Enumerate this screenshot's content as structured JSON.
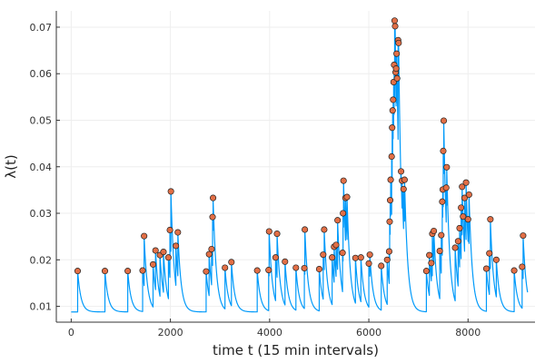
{
  "chart_data": {
    "type": "line",
    "title": "",
    "xlabel": "time t (15 min intervals)",
    "ylabel": "λ(t)",
    "xlim": [
      -300,
      9350
    ],
    "ylim": [
      0.0066,
      0.0735
    ],
    "xticks": [
      0,
      2000,
      4000,
      6000,
      8000
    ],
    "yticks": [
      0.01,
      0.02,
      0.03,
      0.04,
      0.05,
      0.06,
      0.07
    ],
    "ytick_labels": [
      "0.01",
      "0.02",
      "0.03",
      "0.04",
      "0.05",
      "0.06",
      "0.07"
    ],
    "grid": true,
    "legend": "none",
    "baseline": 0.0088,
    "decay": 0.985,
    "t_end": 9200,
    "colors": {
      "line": "#009AFA",
      "marker": "#E26F46",
      "marker_edge": "#222222",
      "grid": "#eeeeee",
      "axis": "#333333"
    },
    "series": [
      {
        "values": [
          [
            130,
            0.0176
          ],
          [
            680,
            0.0176
          ],
          [
            1140,
            0.0176
          ],
          [
            1440,
            0.0177
          ],
          [
            1470,
            0.0251
          ],
          [
            1650,
            0.019
          ],
          [
            1700,
            0.022
          ],
          [
            1790,
            0.021
          ],
          [
            1860,
            0.0217
          ],
          [
            1960,
            0.0205
          ],
          [
            1990,
            0.0264
          ],
          [
            2010,
            0.0347
          ],
          [
            2110,
            0.023
          ],
          [
            2150,
            0.0259
          ],
          [
            2720,
            0.0175
          ],
          [
            2780,
            0.0212
          ],
          [
            2830,
            0.0223
          ],
          [
            2850,
            0.0292
          ],
          [
            2860,
            0.0333
          ],
          [
            3100,
            0.0183
          ],
          [
            3230,
            0.0195
          ],
          [
            3750,
            0.0177
          ],
          [
            3980,
            0.0178
          ],
          [
            3990,
            0.0261
          ],
          [
            4120,
            0.0205
          ],
          [
            4150,
            0.0256
          ],
          [
            4310,
            0.0196
          ],
          [
            4530,
            0.0183
          ],
          [
            4700,
            0.0182
          ],
          [
            4710,
            0.0265
          ],
          [
            5000,
            0.018
          ],
          [
            5080,
            0.0211
          ],
          [
            5100,
            0.0265
          ],
          [
            5260,
            0.0205
          ],
          [
            5300,
            0.0228
          ],
          [
            5340,
            0.0232
          ],
          [
            5370,
            0.0285
          ],
          [
            5470,
            0.0215
          ],
          [
            5480,
            0.03
          ],
          [
            5490,
            0.037
          ],
          [
            5530,
            0.0333
          ],
          [
            5560,
            0.0335
          ],
          [
            5730,
            0.0204
          ],
          [
            5840,
            0.0205
          ],
          [
            6000,
            0.0192
          ],
          [
            6020,
            0.0211
          ],
          [
            6250,
            0.0187
          ],
          [
            6370,
            0.02
          ],
          [
            6410,
            0.0218
          ],
          [
            6420,
            0.0282
          ],
          [
            6430,
            0.0328
          ],
          [
            6440,
            0.0372
          ],
          [
            6460,
            0.0422
          ],
          [
            6470,
            0.0484
          ],
          [
            6480,
            0.0521
          ],
          [
            6490,
            0.0544
          ],
          [
            6500,
            0.0582
          ],
          [
            6510,
            0.0619
          ],
          [
            6520,
            0.0714
          ],
          [
            6530,
            0.0702
          ],
          [
            6540,
            0.0603
          ],
          [
            6550,
            0.0611
          ],
          [
            6560,
            0.0643
          ],
          [
            6570,
            0.059
          ],
          [
            6590,
            0.0672
          ],
          [
            6600,
            0.0666
          ],
          [
            6650,
            0.039
          ],
          [
            6670,
            0.037
          ],
          [
            6700,
            0.0352
          ],
          [
            6720,
            0.0372
          ],
          [
            7160,
            0.0176
          ],
          [
            7220,
            0.021
          ],
          [
            7260,
            0.0193
          ],
          [
            7280,
            0.0256
          ],
          [
            7310,
            0.0262
          ],
          [
            7430,
            0.0219
          ],
          [
            7460,
            0.0253
          ],
          [
            7480,
            0.0325
          ],
          [
            7490,
            0.0351
          ],
          [
            7500,
            0.0434
          ],
          [
            7510,
            0.0499
          ],
          [
            7560,
            0.0355
          ],
          [
            7570,
            0.0399
          ],
          [
            7740,
            0.0226
          ],
          [
            7800,
            0.024
          ],
          [
            7830,
            0.0268
          ],
          [
            7860,
            0.0312
          ],
          [
            7880,
            0.0357
          ],
          [
            7900,
            0.0293
          ],
          [
            7930,
            0.0333
          ],
          [
            7960,
            0.0366
          ],
          [
            8000,
            0.0287
          ],
          [
            8020,
            0.034
          ],
          [
            8370,
            0.0181
          ],
          [
            8430,
            0.0214
          ],
          [
            8450,
            0.0287
          ],
          [
            8570,
            0.02
          ],
          [
            8930,
            0.0177
          ],
          [
            9090,
            0.0185
          ],
          [
            9110,
            0.0252
          ]
        ]
      }
    ]
  }
}
